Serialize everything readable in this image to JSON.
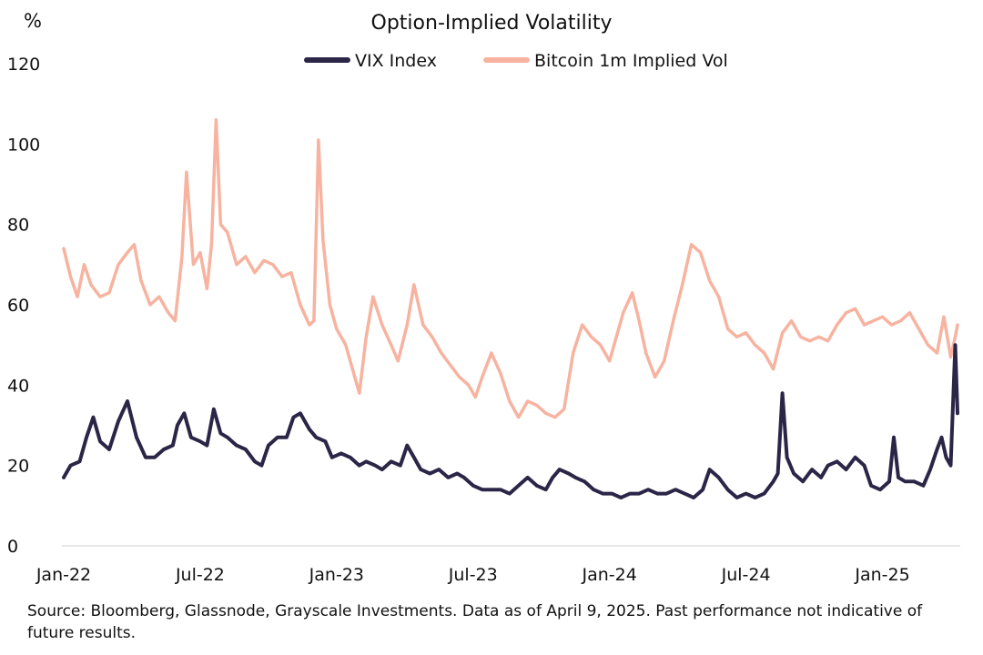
{
  "source_note": "Source: Bloomberg, Glassnode, Grayscale Investments. Data as of April 9, 2025. Past performance not indicative of future results.",
  "chart_data": {
    "type": "line",
    "title": "Option-Implied Volatility",
    "ylabel": "%",
    "xlabel": "",
    "ylim": [
      0,
      120
    ],
    "yticks": [
      0,
      20,
      40,
      60,
      80,
      100,
      120
    ],
    "xticks": [
      {
        "label": "Jan-22",
        "x": 0
      },
      {
        "label": "Jul-22",
        "x": 6
      },
      {
        "label": "Jan-23",
        "x": 12
      },
      {
        "label": "Jul-23",
        "x": 18
      },
      {
        "label": "Jan-24",
        "x": 24
      },
      {
        "label": "Jul-24",
        "x": 30
      },
      {
        "label": "Jan-25",
        "x": 36
      }
    ],
    "xlim": [
      0,
      39.3
    ],
    "legend_position": "top-center",
    "grid": false,
    "series": [
      {
        "name": "VIX Index",
        "color": "#2b2647",
        "points": [
          [
            0.0,
            17
          ],
          [
            0.3,
            20
          ],
          [
            0.7,
            21
          ],
          [
            1.0,
            27
          ],
          [
            1.3,
            32
          ],
          [
            1.6,
            26
          ],
          [
            2.0,
            24
          ],
          [
            2.4,
            31
          ],
          [
            2.8,
            36
          ],
          [
            3.2,
            27
          ],
          [
            3.6,
            22
          ],
          [
            4.0,
            22
          ],
          [
            4.4,
            24
          ],
          [
            4.8,
            25
          ],
          [
            5.0,
            30
          ],
          [
            5.3,
            33
          ],
          [
            5.6,
            27
          ],
          [
            6.0,
            26
          ],
          [
            6.3,
            25
          ],
          [
            6.6,
            34
          ],
          [
            6.9,
            28
          ],
          [
            7.2,
            27
          ],
          [
            7.6,
            25
          ],
          [
            8.0,
            24
          ],
          [
            8.4,
            21
          ],
          [
            8.7,
            20
          ],
          [
            9.0,
            25
          ],
          [
            9.4,
            27
          ],
          [
            9.8,
            27
          ],
          [
            10.1,
            32
          ],
          [
            10.4,
            33
          ],
          [
            10.8,
            29
          ],
          [
            11.1,
            27
          ],
          [
            11.5,
            26
          ],
          [
            11.8,
            22
          ],
          [
            12.2,
            23
          ],
          [
            12.6,
            22
          ],
          [
            13.0,
            20
          ],
          [
            13.3,
            21
          ],
          [
            13.7,
            20
          ],
          [
            14.0,
            19
          ],
          [
            14.4,
            21
          ],
          [
            14.8,
            20
          ],
          [
            15.1,
            25
          ],
          [
            15.4,
            22
          ],
          [
            15.7,
            19
          ],
          [
            16.1,
            18
          ],
          [
            16.5,
            19
          ],
          [
            16.9,
            17
          ],
          [
            17.3,
            18
          ],
          [
            17.6,
            17
          ],
          [
            18.0,
            15
          ],
          [
            18.4,
            14
          ],
          [
            18.8,
            14
          ],
          [
            19.2,
            14
          ],
          [
            19.6,
            13
          ],
          [
            20.0,
            15
          ],
          [
            20.4,
            17
          ],
          [
            20.8,
            15
          ],
          [
            21.2,
            14
          ],
          [
            21.5,
            17
          ],
          [
            21.8,
            19
          ],
          [
            22.2,
            18
          ],
          [
            22.5,
            17
          ],
          [
            22.9,
            16
          ],
          [
            23.3,
            14
          ],
          [
            23.7,
            13
          ],
          [
            24.1,
            13
          ],
          [
            24.5,
            12
          ],
          [
            24.9,
            13
          ],
          [
            25.3,
            13
          ],
          [
            25.7,
            14
          ],
          [
            26.1,
            13
          ],
          [
            26.5,
            13
          ],
          [
            26.9,
            14
          ],
          [
            27.3,
            13
          ],
          [
            27.7,
            12
          ],
          [
            28.1,
            14
          ],
          [
            28.4,
            19
          ],
          [
            28.8,
            17
          ],
          [
            29.2,
            14
          ],
          [
            29.6,
            12
          ],
          [
            30.0,
            13
          ],
          [
            30.4,
            12
          ],
          [
            30.8,
            13
          ],
          [
            31.2,
            16
          ],
          [
            31.4,
            18
          ],
          [
            31.6,
            38
          ],
          [
            31.8,
            22
          ],
          [
            32.1,
            18
          ],
          [
            32.5,
            16
          ],
          [
            32.9,
            19
          ],
          [
            33.3,
            17
          ],
          [
            33.6,
            20
          ],
          [
            34.0,
            21
          ],
          [
            34.4,
            19
          ],
          [
            34.8,
            22
          ],
          [
            35.2,
            20
          ],
          [
            35.5,
            15
          ],
          [
            35.9,
            14
          ],
          [
            36.3,
            16
          ],
          [
            36.5,
            27
          ],
          [
            36.7,
            17
          ],
          [
            37.0,
            16
          ],
          [
            37.4,
            16
          ],
          [
            37.8,
            15
          ],
          [
            38.1,
            19
          ],
          [
            38.4,
            24
          ],
          [
            38.6,
            27
          ],
          [
            38.8,
            22
          ],
          [
            39.0,
            20
          ],
          [
            39.2,
            50
          ],
          [
            39.3,
            33
          ]
        ]
      },
      {
        "name": "Bitcoin 1m Implied Vol",
        "color": "#f7b3a0",
        "points": [
          [
            0.0,
            74
          ],
          [
            0.3,
            67
          ],
          [
            0.6,
            62
          ],
          [
            0.9,
            70
          ],
          [
            1.2,
            65
          ],
          [
            1.6,
            62
          ],
          [
            2.0,
            63
          ],
          [
            2.4,
            70
          ],
          [
            2.8,
            73
          ],
          [
            3.1,
            75
          ],
          [
            3.4,
            66
          ],
          [
            3.8,
            60
          ],
          [
            4.2,
            62
          ],
          [
            4.6,
            58
          ],
          [
            4.9,
            56
          ],
          [
            5.2,
            72
          ],
          [
            5.4,
            93
          ],
          [
            5.7,
            70
          ],
          [
            6.0,
            73
          ],
          [
            6.3,
            64
          ],
          [
            6.5,
            75
          ],
          [
            6.7,
            106
          ],
          [
            6.9,
            80
          ],
          [
            7.2,
            78
          ],
          [
            7.6,
            70
          ],
          [
            8.0,
            72
          ],
          [
            8.4,
            68
          ],
          [
            8.8,
            71
          ],
          [
            9.2,
            70
          ],
          [
            9.6,
            67
          ],
          [
            10.0,
            68
          ],
          [
            10.4,
            60
          ],
          [
            10.8,
            55
          ],
          [
            11.0,
            56
          ],
          [
            11.2,
            101
          ],
          [
            11.4,
            76
          ],
          [
            11.7,
            60
          ],
          [
            12.0,
            54
          ],
          [
            12.4,
            50
          ],
          [
            12.8,
            42
          ],
          [
            13.0,
            38
          ],
          [
            13.3,
            52
          ],
          [
            13.6,
            62
          ],
          [
            14.0,
            55
          ],
          [
            14.4,
            50
          ],
          [
            14.7,
            46
          ],
          [
            15.1,
            55
          ],
          [
            15.4,
            65
          ],
          [
            15.8,
            55
          ],
          [
            16.2,
            52
          ],
          [
            16.6,
            48
          ],
          [
            17.0,
            45
          ],
          [
            17.4,
            42
          ],
          [
            17.8,
            40
          ],
          [
            18.1,
            37
          ],
          [
            18.4,
            42
          ],
          [
            18.8,
            48
          ],
          [
            19.2,
            43
          ],
          [
            19.6,
            36
          ],
          [
            20.0,
            32
          ],
          [
            20.4,
            36
          ],
          [
            20.8,
            35
          ],
          [
            21.2,
            33
          ],
          [
            21.6,
            32
          ],
          [
            22.0,
            34
          ],
          [
            22.4,
            48
          ],
          [
            22.8,
            55
          ],
          [
            23.2,
            52
          ],
          [
            23.6,
            50
          ],
          [
            24.0,
            46
          ],
          [
            24.3,
            52
          ],
          [
            24.6,
            58
          ],
          [
            25.0,
            63
          ],
          [
            25.3,
            56
          ],
          [
            25.6,
            48
          ],
          [
            26.0,
            42
          ],
          [
            26.4,
            46
          ],
          [
            26.8,
            56
          ],
          [
            27.2,
            65
          ],
          [
            27.6,
            75
          ],
          [
            28.0,
            73
          ],
          [
            28.4,
            66
          ],
          [
            28.8,
            62
          ],
          [
            29.2,
            54
          ],
          [
            29.6,
            52
          ],
          [
            30.0,
            53
          ],
          [
            30.4,
            50
          ],
          [
            30.8,
            48
          ],
          [
            31.2,
            44
          ],
          [
            31.6,
            53
          ],
          [
            32.0,
            56
          ],
          [
            32.4,
            52
          ],
          [
            32.8,
            51
          ],
          [
            33.2,
            52
          ],
          [
            33.6,
            51
          ],
          [
            34.0,
            55
          ],
          [
            34.4,
            58
          ],
          [
            34.8,
            59
          ],
          [
            35.2,
            55
          ],
          [
            35.6,
            56
          ],
          [
            36.0,
            57
          ],
          [
            36.4,
            55
          ],
          [
            36.8,
            56
          ],
          [
            37.2,
            58
          ],
          [
            37.6,
            54
          ],
          [
            38.0,
            50
          ],
          [
            38.4,
            48
          ],
          [
            38.7,
            57
          ],
          [
            39.0,
            47
          ],
          [
            39.2,
            52
          ],
          [
            39.3,
            55
          ]
        ]
      }
    ]
  }
}
